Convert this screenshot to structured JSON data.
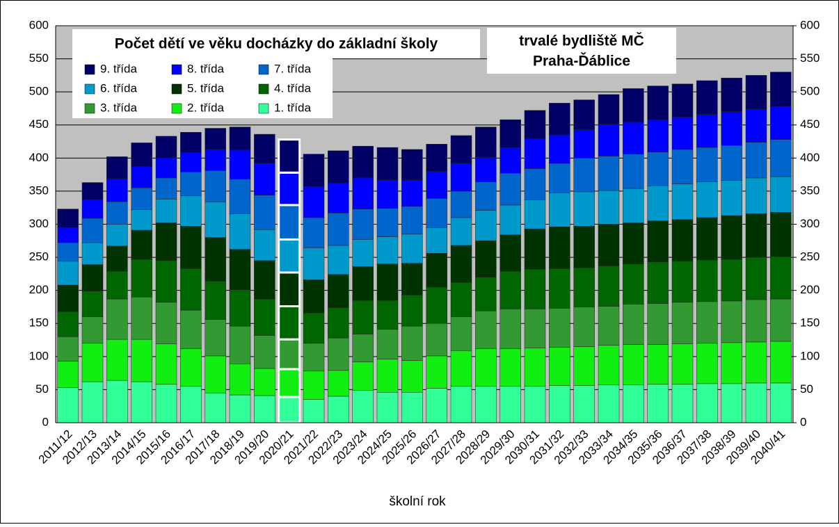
{
  "chart_data": {
    "type": "stacked_bar",
    "title": "Počet dětí ve věku docházky do základní školy",
    "subtitle": [
      "trvalé bydliště MČ",
      "Praha-Ďáblice"
    ],
    "x_label": "školní rok",
    "categories": [
      "2011/12",
      "2012/13",
      "2013/14",
      "2014/15",
      "2015/16",
      "2016/17",
      "2017/18",
      "2018/19",
      "2019/20",
      "2020/21",
      "2021/22",
      "2022/23",
      "2023/24",
      "2024/25",
      "2025/26",
      "2026/27",
      "2027/28",
      "2028/29",
      "2029/30",
      "2030/31",
      "2031/32",
      "2032/33",
      "2033/34",
      "2034/35",
      "2035/36",
      "2036/37",
      "2037/38",
      "2038/39",
      "2039/40",
      "2040/41"
    ],
    "series": [
      {
        "name": "1. třída",
        "color": "#33ff99",
        "values": [
          53,
          62,
          64,
          62,
          58,
          55,
          45,
          42,
          41,
          39,
          35,
          40,
          49,
          46,
          46,
          52,
          55,
          55,
          55,
          55,
          56,
          56,
          57,
          57,
          58,
          58,
          59,
          59,
          60,
          60
        ]
      },
      {
        "name": "2. třída",
        "color": "#11ee11",
        "values": [
          40,
          58,
          62,
          64,
          61,
          57,
          56,
          47,
          41,
          42,
          43,
          39,
          43,
          50,
          48,
          49,
          54,
          57,
          57,
          58,
          58,
          59,
          60,
          61,
          60,
          61,
          61,
          62,
          62,
          63
        ]
      },
      {
        "name": "3. třída",
        "color": "#339933",
        "values": [
          37,
          40,
          61,
          64,
          63,
          58,
          55,
          57,
          50,
          45,
          42,
          49,
          42,
          45,
          52,
          49,
          51,
          57,
          60,
          59,
          59,
          60,
          59,
          61,
          62,
          63,
          63,
          63,
          64,
          64
        ]
      },
      {
        "name": "4. třída",
        "color": "#006600",
        "values": [
          38,
          39,
          42,
          57,
          63,
          63,
          58,
          55,
          55,
          50,
          46,
          46,
          51,
          44,
          47,
          55,
          52,
          51,
          57,
          60,
          60,
          59,
          61,
          61,
          63,
          62,
          63,
          63,
          64,
          64
        ]
      },
      {
        "name": "5. třída",
        "color": "#003300",
        "values": [
          40,
          40,
          38,
          44,
          57,
          64,
          66,
          61,
          58,
          51,
          50,
          50,
          51,
          55,
          48,
          51,
          56,
          55,
          55,
          61,
          63,
          63,
          63,
          62,
          62,
          63,
          64,
          66,
          66,
          67
        ]
      },
      {
        "name": "6. třída",
        "color": "#0099cc",
        "values": [
          36,
          33,
          33,
          31,
          36,
          46,
          54,
          54,
          47,
          50,
          48,
          44,
          41,
          41,
          44,
          39,
          42,
          46,
          45,
          44,
          51,
          52,
          51,
          52,
          53,
          54,
          54,
          53,
          54,
          54
        ]
      },
      {
        "name": "7. třída",
        "color": "#0066cc",
        "values": [
          28,
          37,
          34,
          33,
          32,
          36,
          47,
          52,
          52,
          52,
          46,
          49,
          46,
          43,
          42,
          44,
          40,
          43,
          48,
          47,
          45,
          51,
          52,
          52,
          51,
          52,
          52,
          53,
          54,
          56
        ]
      },
      {
        "name": "8. třída",
        "color": "#0000ff",
        "values": [
          23,
          28,
          35,
          32,
          30,
          29,
          32,
          44,
          48,
          49,
          47,
          45,
          47,
          43,
          40,
          41,
          42,
          37,
          39,
          45,
          43,
          43,
          48,
          48,
          49,
          49,
          50,
          51,
          50,
          50
        ]
      },
      {
        "name": "9. třída",
        "color": "#000066",
        "values": [
          28,
          26,
          33,
          36,
          33,
          31,
          32,
          35,
          44,
          50,
          49,
          49,
          48,
          49,
          46,
          41,
          42,
          46,
          42,
          43,
          48,
          45,
          45,
          51,
          51,
          50,
          51,
          51,
          51,
          52
        ]
      }
    ],
    "highlight_index": 9,
    "ylim": [
      0,
      600
    ],
    "yticks": [
      0,
      50,
      100,
      150,
      200,
      250,
      300,
      350,
      400,
      450,
      500,
      550,
      600
    ],
    "y2lim": [
      0,
      600
    ],
    "y2ticks": [
      0,
      50,
      100,
      150,
      200,
      250,
      300,
      350,
      400,
      450,
      500,
      550,
      600
    ],
    "grid": true
  }
}
